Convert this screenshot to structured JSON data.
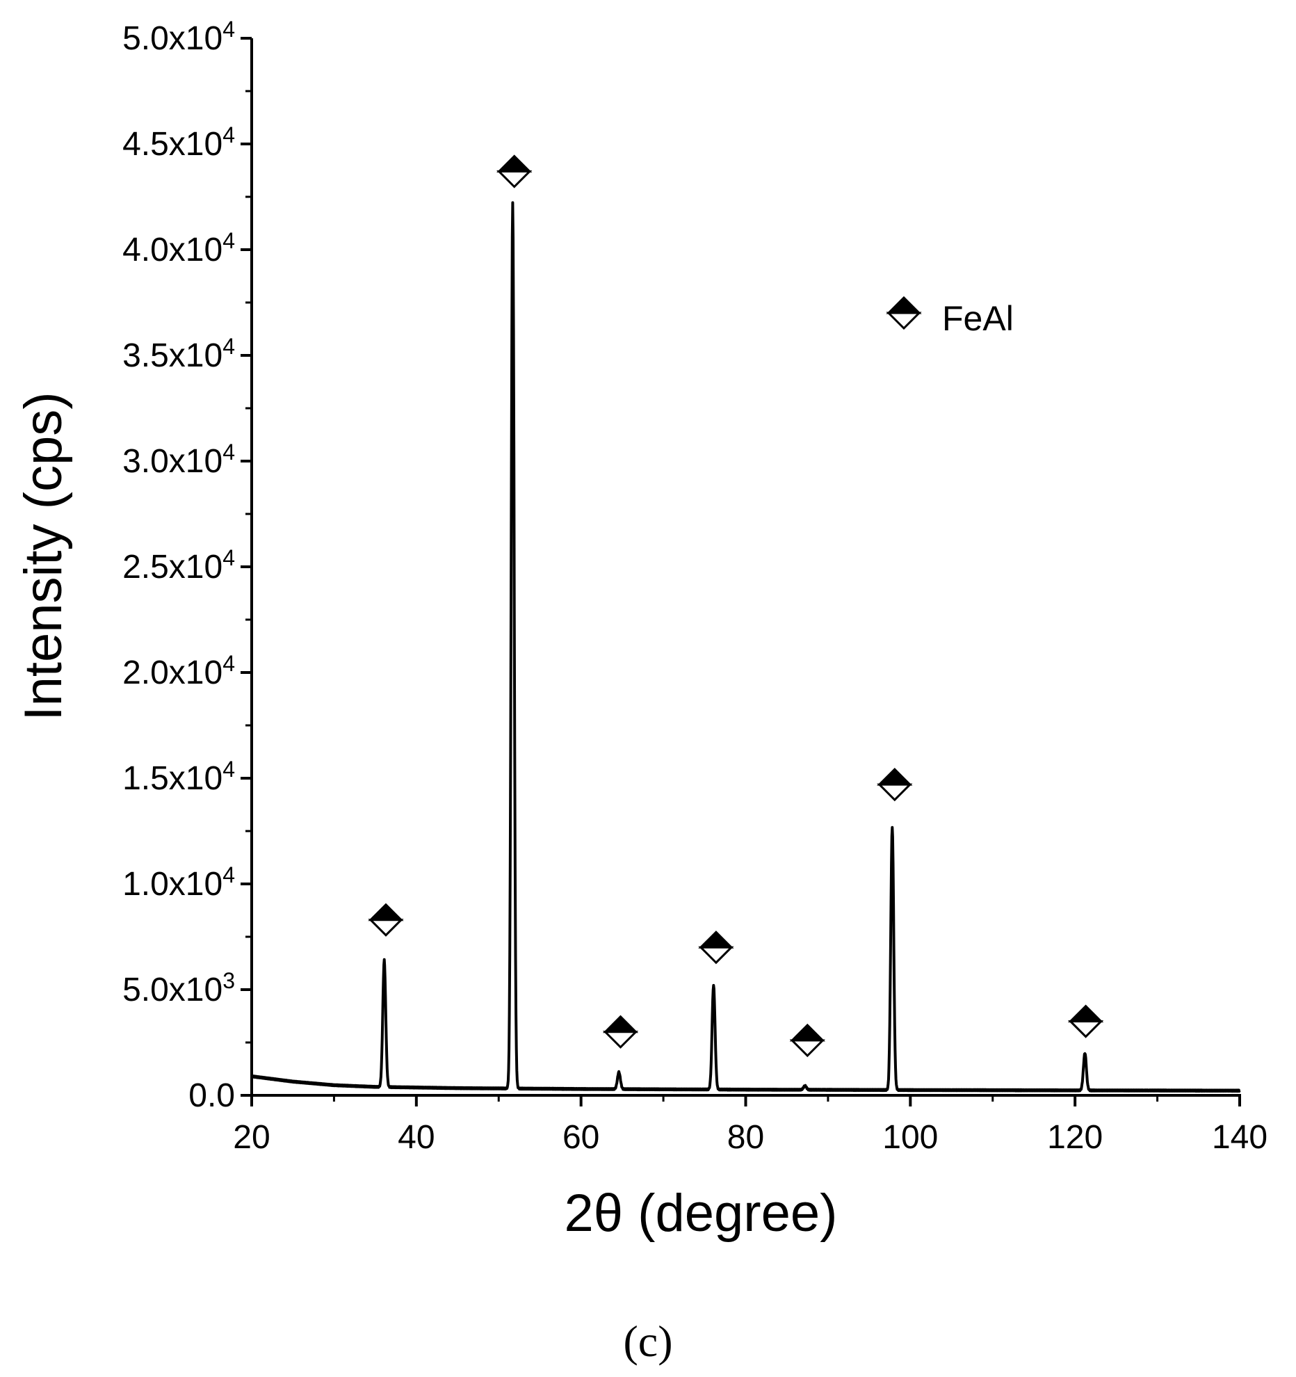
{
  "chart_data": {
    "type": "line",
    "xlabel": "2θ (degree)",
    "ylabel": "Intensity (cps)",
    "xlim": [
      20,
      140
    ],
    "ylim": [
      0,
      50000
    ],
    "x_ticks": [
      "20",
      "40",
      "60",
      "80",
      "100",
      "120",
      "140"
    ],
    "y_ticks": [
      {
        "mantissa": "0.0",
        "exp": ""
      },
      {
        "mantissa": "5.0x10",
        "exp": "3"
      },
      {
        "mantissa": "1.0x10",
        "exp": "4"
      },
      {
        "mantissa": "1.5x10",
        "exp": "4"
      },
      {
        "mantissa": "2.0x10",
        "exp": "4"
      },
      {
        "mantissa": "2.5x10",
        "exp": "4"
      },
      {
        "mantissa": "3.0x10",
        "exp": "4"
      },
      {
        "mantissa": "3.5x10",
        "exp": "4"
      },
      {
        "mantissa": "4.0x10",
        "exp": "4"
      },
      {
        "mantissa": "4.5x10",
        "exp": "4"
      },
      {
        "mantissa": "5.0x10",
        "exp": "4"
      }
    ],
    "baseline": [
      [
        20,
        900
      ],
      [
        25,
        650
      ],
      [
        30,
        480
      ],
      [
        35,
        400
      ],
      [
        45,
        340
      ],
      [
        60,
        300
      ],
      [
        80,
        270
      ],
      [
        100,
        250
      ],
      [
        120,
        235
      ],
      [
        140,
        220
      ]
    ],
    "peaks": [
      {
        "x": 36.1,
        "y": 6400
      },
      {
        "x": 51.7,
        "y": 42200
      },
      {
        "x": 64.6,
        "y": 1100
      },
      {
        "x": 76.1,
        "y": 5200
      },
      {
        "x": 87.2,
        "y": 450
      },
      {
        "x": 97.8,
        "y": 12700
      },
      {
        "x": 121.2,
        "y": 2000
      }
    ],
    "markers": [
      {
        "x": 36.3,
        "y": 8300
      },
      {
        "x": 51.9,
        "y": 43700
      },
      {
        "x": 64.8,
        "y": 3000
      },
      {
        "x": 76.4,
        "y": 7000
      },
      {
        "x": 87.5,
        "y": 2600
      },
      {
        "x": 98.1,
        "y": 14700
      },
      {
        "x": 121.3,
        "y": 3500
      }
    ],
    "legend": {
      "label": "FeAl",
      "position": "upper-right"
    },
    "series_color": "#000000",
    "grid": false
  },
  "caption": "(c)"
}
